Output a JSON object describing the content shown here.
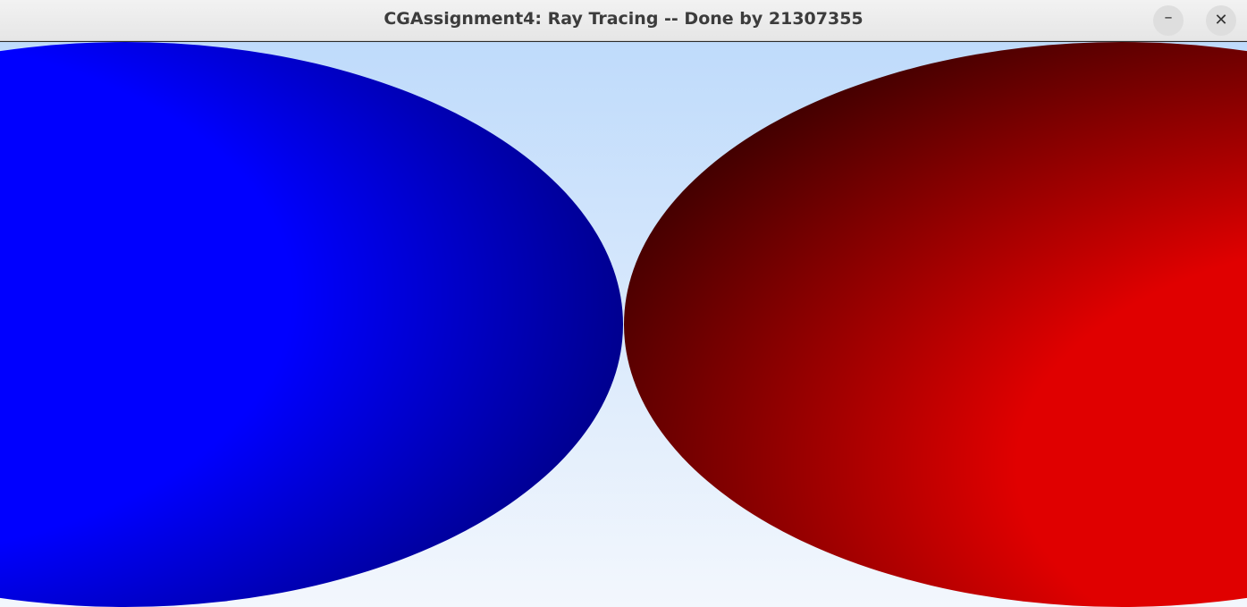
{
  "window": {
    "title": "CGAssignment4: Ray Tracing -- Done by 21307355",
    "minimize_glyph": "–",
    "close_glyph": "✕"
  },
  "scene": {
    "sky_top_color": "#bfdbfb",
    "sky_bottom_color": "#f3f7fd",
    "spheres": [
      {
        "name": "blue-sphere",
        "color": "#0000ff",
        "shade_color": "#000080"
      },
      {
        "name": "red-sphere",
        "color": "#e00000",
        "shade_color": "#400000"
      }
    ]
  }
}
